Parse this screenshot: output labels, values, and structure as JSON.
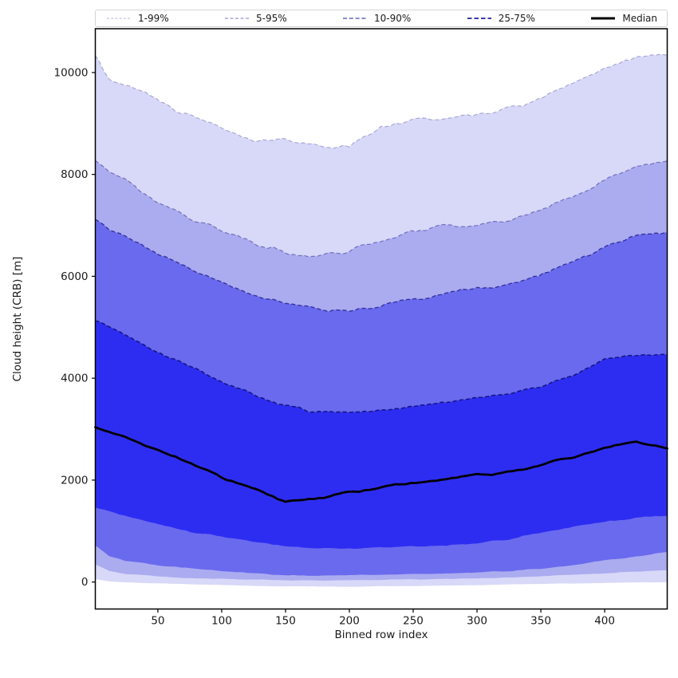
{
  "figure": {
    "background": "#ffffff"
  },
  "legend": {
    "entries": [
      {
        "label": "1-99%",
        "color": "rgba(42,42,168,0.35)",
        "width": 1.1,
        "dash": "3 2.2"
      },
      {
        "label": "5-95%",
        "color": "rgba(42,42,168,0.50)",
        "width": 1.3,
        "dash": "4 2.5"
      },
      {
        "label": "10-90%",
        "color": "rgba(42,42,168,0.72)",
        "width": 1.5,
        "dash": "5 2.8"
      },
      {
        "label": "25-75%",
        "color": "rgba(42,42,168,0.92)",
        "width": 2.0,
        "dash": "5.5 3"
      },
      {
        "label": "Median",
        "color": "#000000",
        "width": 3.0,
        "dash": null
      }
    ]
  },
  "axes": {
    "xlabel": "Binned row index",
    "ylabel": "Cloud height (CRB) [m]",
    "xticks": [
      50,
      100,
      150,
      200,
      250,
      300,
      350,
      400
    ],
    "yticks": [
      0,
      2000,
      4000,
      6000,
      8000,
      10000
    ],
    "xlim": [
      1,
      449
    ],
    "ylim": [
      -530,
      10860
    ]
  },
  "chart_data": {
    "type": "area",
    "subtype": "percentile-fan",
    "title": "",
    "xlabel": "Binned row index",
    "ylabel": "Cloud height (CRB) [m]",
    "xlim": [
      1,
      449
    ],
    "ylim": [
      -530,
      10860
    ],
    "grid": false,
    "legend_position": "top-outside",
    "x_anchors": [
      1,
      12,
      25,
      50,
      75,
      100,
      125,
      150,
      175,
      200,
      225,
      250,
      275,
      300,
      325,
      350,
      375,
      400,
      425,
      449
    ],
    "series": [
      {
        "name": "p1",
        "percentile": 1,
        "values": [
          60,
          10,
          -10,
          -30,
          -45,
          -60,
          -75,
          -85,
          -90,
          -90,
          -85,
          -80,
          -70,
          -60,
          -50,
          -40,
          -30,
          -20,
          -10,
          -5
        ]
      },
      {
        "name": "p5",
        "percentile": 5,
        "values": [
          350,
          220,
          160,
          110,
          80,
          60,
          45,
          35,
          30,
          35,
          40,
          50,
          60,
          75,
          90,
          110,
          140,
          170,
          205,
          235
        ]
      },
      {
        "name": "p10",
        "percentile": 10,
        "values": [
          720,
          500,
          420,
          330,
          270,
          215,
          170,
          140,
          130,
          130,
          140,
          150,
          165,
          185,
          215,
          260,
          330,
          420,
          510,
          580
        ]
      },
      {
        "name": "p25",
        "percentile": 25,
        "values": [
          1480,
          1390,
          1300,
          1130,
          990,
          880,
          780,
          705,
          665,
          655,
          675,
          700,
          730,
          770,
          840,
          970,
          1090,
          1190,
          1265,
          1300
        ]
      },
      {
        "name": "p50",
        "percentile": 50,
        "values": [
          3050,
          2950,
          2830,
          2600,
          2340,
          2050,
          1840,
          1560,
          1630,
          1760,
          1870,
          1940,
          2010,
          2100,
          2160,
          2300,
          2450,
          2640,
          2750,
          2620
        ]
      },
      {
        "name": "p75",
        "percentile": 75,
        "values": [
          5120,
          5000,
          4850,
          4520,
          4210,
          3940,
          3690,
          3460,
          3340,
          3310,
          3370,
          3450,
          3540,
          3620,
          3690,
          3830,
          4040,
          4350,
          4450,
          4470
        ]
      },
      {
        "name": "p90",
        "percentile": 90,
        "values": [
          7100,
          6950,
          6790,
          6420,
          6150,
          5880,
          5650,
          5460,
          5360,
          5320,
          5420,
          5540,
          5660,
          5760,
          5840,
          6020,
          6300,
          6570,
          6830,
          6870
        ]
      },
      {
        "name": "p95",
        "percentile": 95,
        "values": [
          8230,
          8080,
          7900,
          7480,
          7130,
          6900,
          6660,
          6470,
          6420,
          6510,
          6700,
          6870,
          7000,
          7020,
          7120,
          7310,
          7530,
          7900,
          8130,
          8230
        ]
      },
      {
        "name": "p99",
        "percentile": 99,
        "values": [
          10280,
          9850,
          9720,
          9480,
          9130,
          8900,
          8660,
          8700,
          8560,
          8500,
          8980,
          9090,
          9100,
          9200,
          9320,
          9500,
          9780,
          10120,
          10340,
          10310
        ]
      }
    ],
    "bands": [
      {
        "label": "1-99%",
        "lower": "p1",
        "upper": "p99",
        "fill": "#d8d8f8",
        "edge": "rgba(34,34,136,0.35)",
        "edge_width": 1.1
      },
      {
        "label": "5-95%",
        "lower": "p5",
        "upper": "p95",
        "fill": "#ababf0",
        "edge": "rgba(34,34,136,0.50)",
        "edge_width": 1.2
      },
      {
        "label": "10-90%",
        "lower": "p10",
        "upper": "p90",
        "fill": "#6a6aee",
        "edge": "rgba(24,24,130,0.75)",
        "edge_width": 1.4
      },
      {
        "label": "25-75%",
        "lower": "p25",
        "upper": "p75",
        "fill": "#2d2df2",
        "edge": "rgba(18,18,120,0.92)",
        "edge_width": 1.6
      }
    ],
    "median": {
      "label": "Median",
      "series": "p50",
      "color": "#000000",
      "width": 2.8
    }
  }
}
